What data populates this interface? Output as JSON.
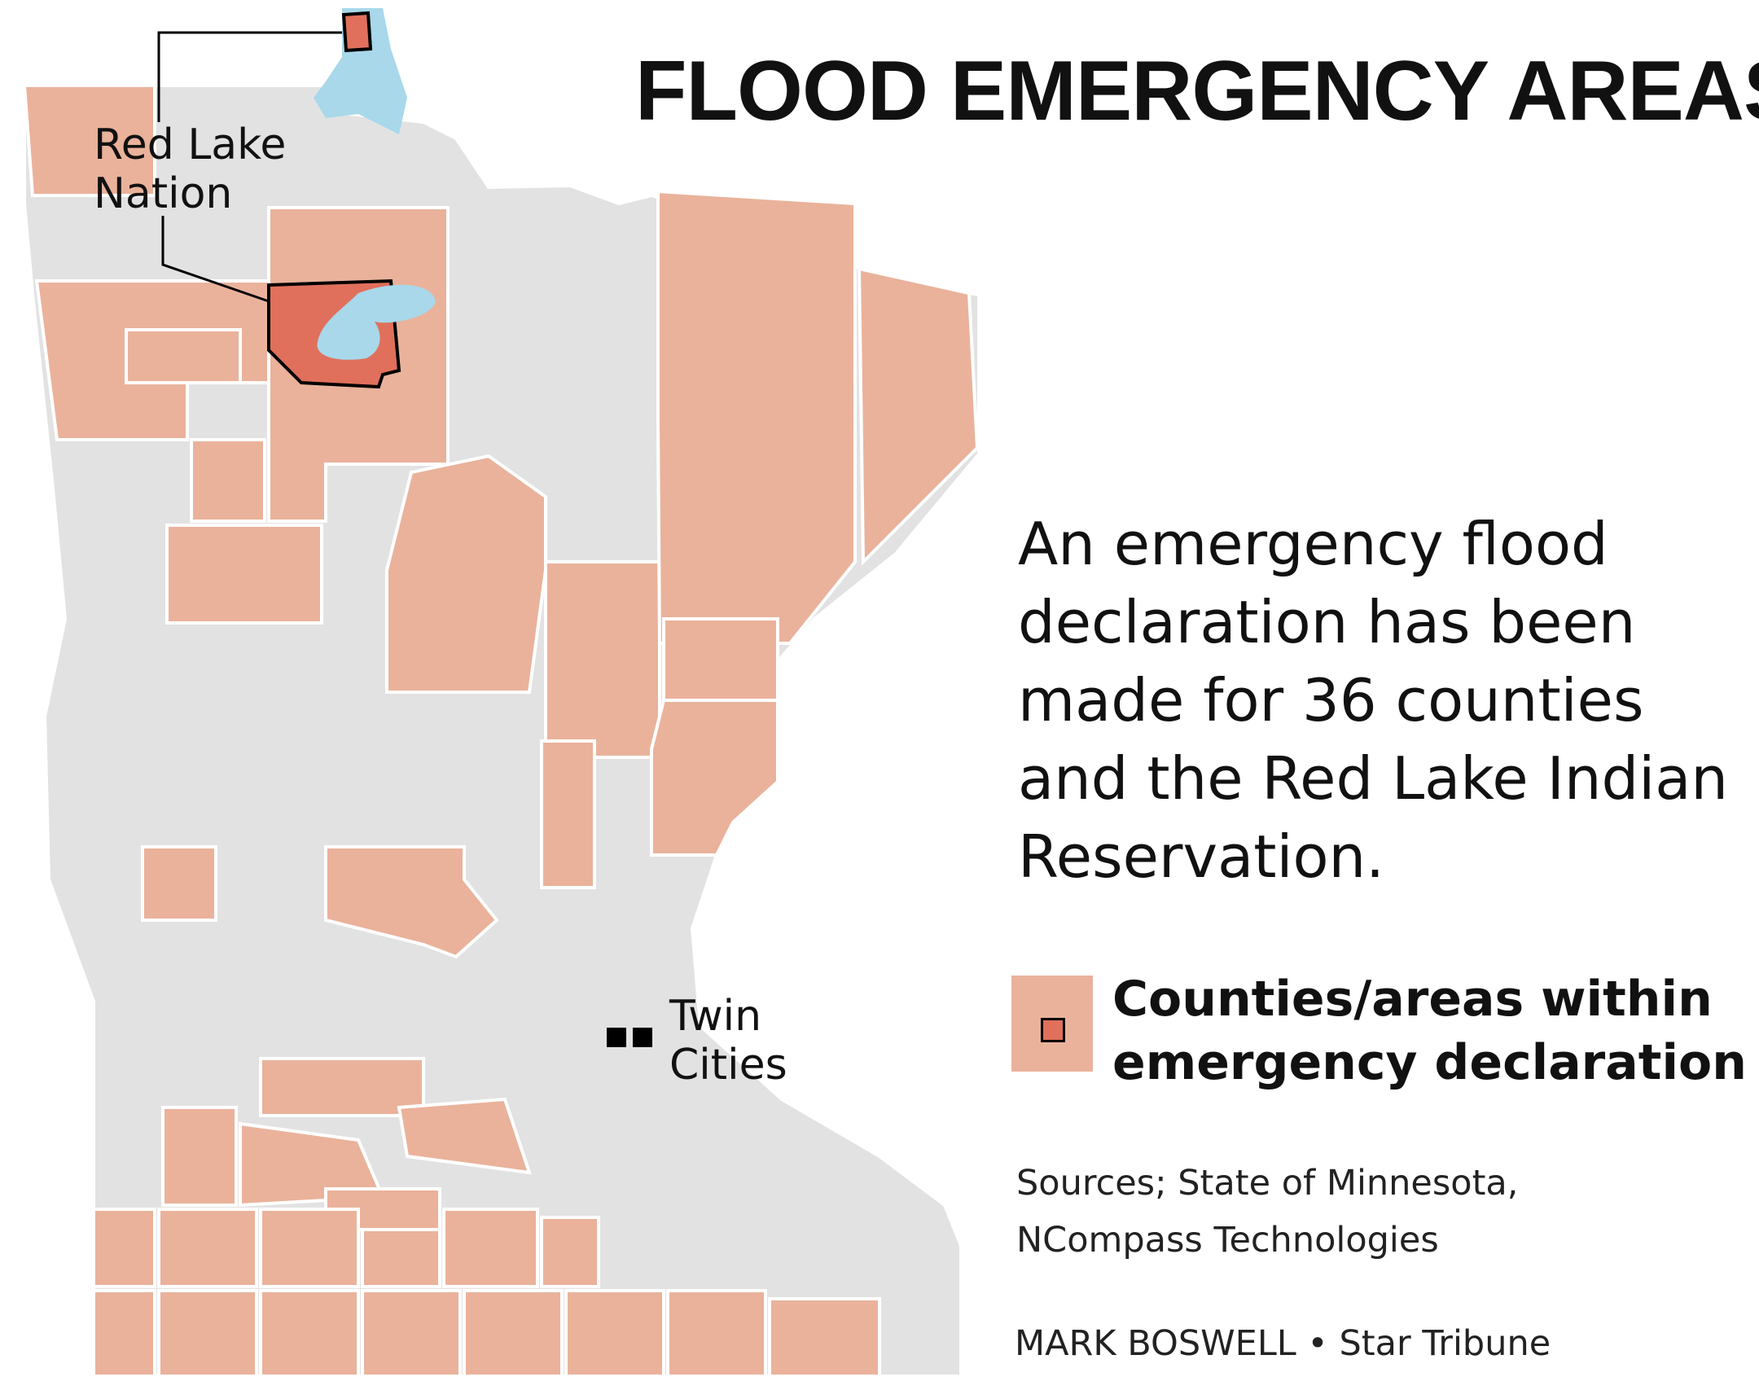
{
  "title": "FLOOD EMERGENCY AREAS",
  "description_lines": [
    "An emergency flood",
    "declaration has been",
    "made for 36 counties",
    "and the Red Lake Indian",
    "Reservation."
  ],
  "legend": {
    "label_lines": [
      "Counties/areas within",
      "emergency declaration"
    ],
    "swatch_color": "#eab29b",
    "reservation_color": "#e0705c"
  },
  "map": {
    "labels": {
      "red_lake": [
        "Red Lake",
        "Nation"
      ],
      "twin_cities": [
        "Twin",
        "Cities"
      ]
    },
    "colors": {
      "declared": "#eab29b",
      "not_declared": "#e2e2e2",
      "reservation": "#e0705c",
      "water": "#a8d8ea",
      "border": "#ffffff"
    }
  },
  "sources_lines": [
    "Sources; State of Minnesota,",
    "NCompass Technologies"
  ],
  "credit": {
    "author": "MARK BOSWELL",
    "separator": "•",
    "outlet": "Star Tribune"
  }
}
